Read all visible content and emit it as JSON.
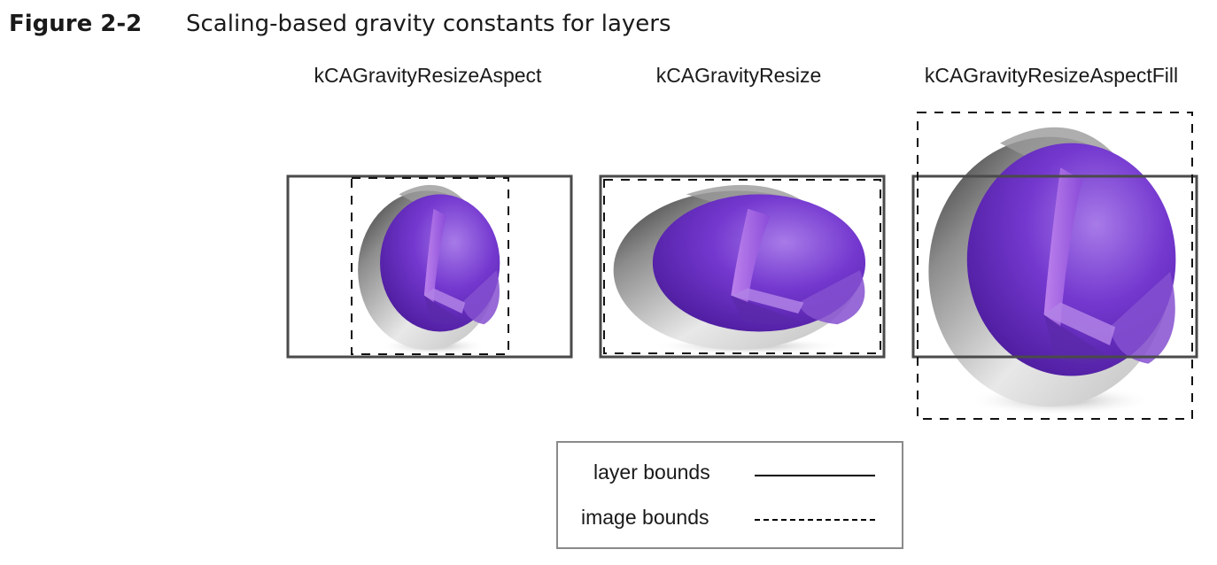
{
  "figure": {
    "number": "Figure 2-2",
    "title": "Scaling-based gravity constants for layers"
  },
  "panels": [
    {
      "label": "kCAGravityResizeAspect"
    },
    {
      "label": "kCAGravityResize"
    },
    {
      "label": "kCAGravityResizeAspectFill"
    }
  ],
  "legend": {
    "layer_bounds_label": "layer bounds",
    "image_bounds_label": "image bounds"
  },
  "colors": {
    "layer_border": "#4a4a4a",
    "image_border": "#111111",
    "sphere_purple": "#6a2fc0",
    "sphere_shell": "#d8d8d8"
  },
  "icons": {
    "sphere": "purple-glass-sphere-icon"
  }
}
